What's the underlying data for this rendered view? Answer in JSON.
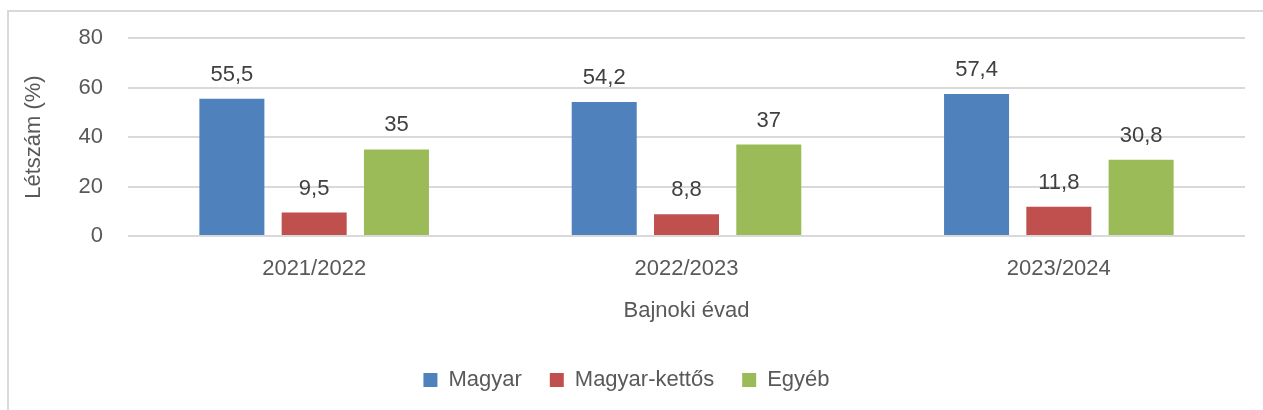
{
  "chart_data": {
    "type": "bar",
    "categories": [
      "2021/2022",
      "2022/2023",
      "2023/2024"
    ],
    "series": [
      {
        "name": "Magyar",
        "color": "#4f81bd",
        "values": [
          55.5,
          54.2,
          57.4
        ],
        "value_labels": [
          "55,5",
          "54,2",
          "57,4"
        ]
      },
      {
        "name": "Magyar-kettős",
        "color": "#c0504d",
        "values": [
          9.5,
          8.8,
          11.8
        ],
        "value_labels": [
          "9,5",
          "8,8",
          "11,8"
        ]
      },
      {
        "name": "Egyéb",
        "color": "#9bbb59",
        "values": [
          35,
          37,
          30.8
        ],
        "value_labels": [
          "35",
          "37",
          "30,8"
        ]
      }
    ],
    "xlabel": "Bajnoki évad",
    "ylabel": "Létszám (%)",
    "ylim": [
      0,
      80
    ],
    "yticks": [
      0,
      20,
      40,
      60,
      80
    ],
    "grid": "y",
    "legend": "bottom"
  }
}
